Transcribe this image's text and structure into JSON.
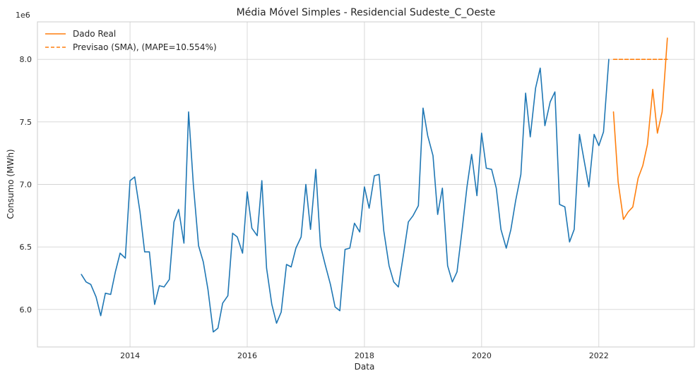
{
  "chart_data": {
    "type": "line",
    "title": "Média Móvel Simples - Residencial Sudeste_C_Oeste",
    "xlabel": "Data",
    "ylabel": "Consumo (MWh)",
    "y_offset_label": "1e6",
    "y_multiplier": 1000000,
    "x_unit": "decimal year",
    "xlim": [
      2012.42,
      2023.63
    ],
    "ylim": [
      5.7,
      8.3
    ],
    "x_ticks": [
      2014,
      2016,
      2018,
      2020,
      2022
    ],
    "x_tick_labels": [
      "2014",
      "2016",
      "2018",
      "2020",
      "2022"
    ],
    "y_ticks": [
      6.0,
      6.5,
      7.0,
      7.5,
      8.0
    ],
    "y_tick_labels": [
      "6.0",
      "6.5",
      "7.0",
      "7.5",
      "8.0"
    ],
    "grid": true,
    "legend_position": "top-left",
    "legend": [
      "Dado Real",
      "Previsao (SMA), (MAPE=10.554%)"
    ],
    "series": [
      {
        "name": "",
        "role": "history",
        "color": "#1f77b4",
        "style": "solid",
        "points": [
          [
            2013.17,
            6.28
          ],
          [
            2013.25,
            6.22
          ],
          [
            2013.33,
            6.2
          ],
          [
            2013.42,
            6.1
          ],
          [
            2013.5,
            5.95
          ],
          [
            2013.58,
            6.13
          ],
          [
            2013.67,
            6.12
          ],
          [
            2013.75,
            6.3
          ],
          [
            2013.83,
            6.45
          ],
          [
            2013.92,
            6.41
          ],
          [
            2014.0,
            7.03
          ],
          [
            2014.08,
            7.06
          ],
          [
            2014.17,
            6.78
          ],
          [
            2014.25,
            6.46
          ],
          [
            2014.33,
            6.46
          ],
          [
            2014.42,
            6.04
          ],
          [
            2014.5,
            6.19
          ],
          [
            2014.58,
            6.18
          ],
          [
            2014.67,
            6.24
          ],
          [
            2014.75,
            6.7
          ],
          [
            2014.83,
            6.8
          ],
          [
            2014.92,
            6.53
          ],
          [
            2015.0,
            7.58
          ],
          [
            2015.08,
            7.0
          ],
          [
            2015.17,
            6.51
          ],
          [
            2015.25,
            6.38
          ],
          [
            2015.33,
            6.16
          ],
          [
            2015.42,
            5.82
          ],
          [
            2015.5,
            5.85
          ],
          [
            2015.58,
            6.05
          ],
          [
            2015.67,
            6.11
          ],
          [
            2015.75,
            6.61
          ],
          [
            2015.83,
            6.58
          ],
          [
            2015.92,
            6.45
          ],
          [
            2016.0,
            6.94
          ],
          [
            2016.08,
            6.65
          ],
          [
            2016.17,
            6.59
          ],
          [
            2016.25,
            7.03
          ],
          [
            2016.33,
            6.33
          ],
          [
            2016.42,
            6.04
          ],
          [
            2016.5,
            5.89
          ],
          [
            2016.58,
            5.98
          ],
          [
            2016.67,
            6.36
          ],
          [
            2016.75,
            6.34
          ],
          [
            2016.83,
            6.49
          ],
          [
            2016.92,
            6.58
          ],
          [
            2017.0,
            7.0
          ],
          [
            2017.08,
            6.64
          ],
          [
            2017.17,
            7.12
          ],
          [
            2017.25,
            6.51
          ],
          [
            2017.33,
            6.36
          ],
          [
            2017.42,
            6.2
          ],
          [
            2017.5,
            6.02
          ],
          [
            2017.58,
            5.99
          ],
          [
            2017.67,
            6.48
          ],
          [
            2017.75,
            6.49
          ],
          [
            2017.83,
            6.69
          ],
          [
            2017.92,
            6.62
          ],
          [
            2018.0,
            6.98
          ],
          [
            2018.08,
            6.81
          ],
          [
            2018.17,
            7.07
          ],
          [
            2018.25,
            7.08
          ],
          [
            2018.33,
            6.63
          ],
          [
            2018.42,
            6.35
          ],
          [
            2018.5,
            6.22
          ],
          [
            2018.58,
            6.18
          ],
          [
            2018.67,
            6.45
          ],
          [
            2018.75,
            6.7
          ],
          [
            2018.83,
            6.75
          ],
          [
            2018.92,
            6.83
          ],
          [
            2019.0,
            7.61
          ],
          [
            2019.08,
            7.39
          ],
          [
            2019.17,
            7.23
          ],
          [
            2019.25,
            6.76
          ],
          [
            2019.33,
            6.97
          ],
          [
            2019.42,
            6.35
          ],
          [
            2019.5,
            6.22
          ],
          [
            2019.58,
            6.3
          ],
          [
            2019.67,
            6.65
          ],
          [
            2019.75,
            6.98
          ],
          [
            2019.83,
            7.24
          ],
          [
            2019.92,
            6.91
          ],
          [
            2020.0,
            7.41
          ],
          [
            2020.08,
            7.13
          ],
          [
            2020.17,
            7.12
          ],
          [
            2020.25,
            6.97
          ],
          [
            2020.33,
            6.64
          ],
          [
            2020.42,
            6.49
          ],
          [
            2020.5,
            6.64
          ],
          [
            2020.58,
            6.87
          ],
          [
            2020.67,
            7.08
          ],
          [
            2020.75,
            7.73
          ],
          [
            2020.83,
            7.38
          ],
          [
            2020.92,
            7.77
          ],
          [
            2021.0,
            7.93
          ],
          [
            2021.08,
            7.47
          ],
          [
            2021.17,
            7.66
          ],
          [
            2021.25,
            7.74
          ],
          [
            2021.33,
            6.84
          ],
          [
            2021.42,
            6.82
          ],
          [
            2021.5,
            6.54
          ],
          [
            2021.58,
            6.64
          ],
          [
            2021.67,
            7.4
          ],
          [
            2021.75,
            7.19
          ],
          [
            2021.83,
            6.98
          ],
          [
            2021.92,
            7.4
          ],
          [
            2022.0,
            7.31
          ],
          [
            2022.08,
            7.42
          ],
          [
            2022.17,
            8.0
          ]
        ]
      },
      {
        "name": "Dado Real",
        "role": "actual",
        "color": "#ff7f0e",
        "style": "solid",
        "points": [
          [
            2022.25,
            7.58
          ],
          [
            2022.33,
            7.02
          ],
          [
            2022.42,
            6.72
          ],
          [
            2022.5,
            6.78
          ],
          [
            2022.58,
            6.82
          ],
          [
            2022.67,
            7.05
          ],
          [
            2022.75,
            7.15
          ],
          [
            2022.83,
            7.32
          ],
          [
            2022.92,
            7.76
          ],
          [
            2023.0,
            7.41
          ],
          [
            2023.08,
            7.58
          ],
          [
            2023.17,
            8.17
          ]
        ]
      },
      {
        "name": "Previsao (SMA), (MAPE=10.554%)",
        "role": "forecast",
        "color": "#ff7f0e",
        "style": "dashed",
        "points": [
          [
            2022.25,
            8.0
          ],
          [
            2022.33,
            8.0
          ],
          [
            2022.42,
            8.0
          ],
          [
            2022.5,
            8.0
          ],
          [
            2022.58,
            8.0
          ],
          [
            2022.67,
            8.0
          ],
          [
            2022.75,
            8.0
          ],
          [
            2022.83,
            8.0
          ],
          [
            2022.92,
            8.0
          ],
          [
            2023.0,
            8.0
          ],
          [
            2023.08,
            8.0
          ],
          [
            2023.17,
            8.0
          ]
        ]
      }
    ]
  }
}
